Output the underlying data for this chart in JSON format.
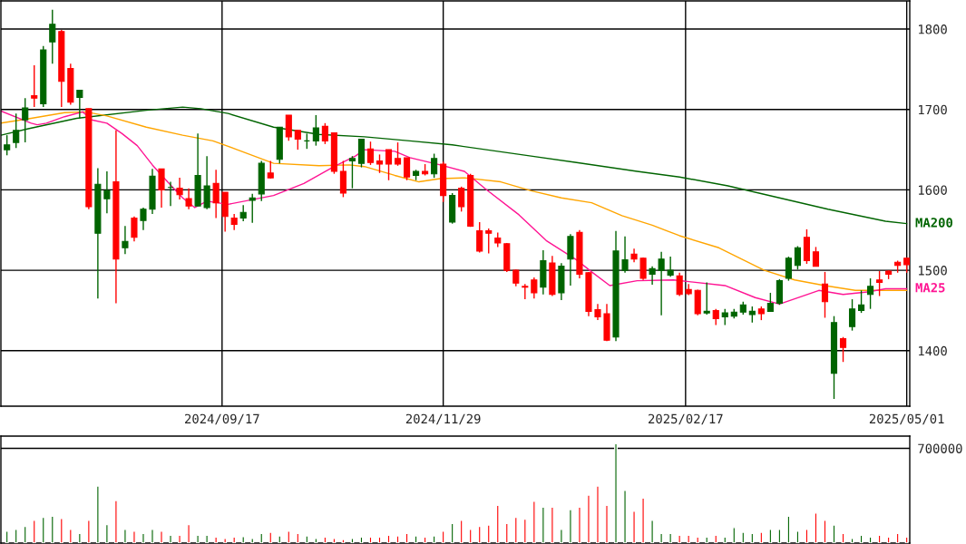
{
  "chart_data": [
    {
      "type": "candlestick",
      "x": [
        "2024-07-08",
        "2024-07-11",
        "2024-07-14",
        "2024-07-17",
        "2024-07-20",
        "2024-07-23",
        "2024-07-26",
        "2024-07-29",
        "2024-08-01",
        "2024-08-04",
        "2024-08-07",
        "2024-08-10",
        "2024-08-13",
        "2024-08-16",
        "2024-08-19",
        "2024-08-22",
        "2024-08-25",
        "2024-08-28",
        "2024-08-31",
        "2024-09-03",
        "2024-09-06",
        "2024-09-09",
        "2024-09-12",
        "2024-09-15",
        "2024-09-18",
        "2024-09-21",
        "2024-09-24",
        "2024-09-27",
        "2024-09-30",
        "2024-10-03",
        "2024-10-06",
        "2024-10-09",
        "2024-10-12",
        "2024-10-15",
        "2024-10-18",
        "2024-10-21",
        "2024-10-24",
        "2024-10-27",
        "2024-10-30",
        "2024-11-02",
        "2024-11-05",
        "2024-11-08",
        "2024-11-11",
        "2024-11-14",
        "2024-11-17",
        "2024-11-20",
        "2024-11-23",
        "2024-11-26",
        "2024-11-29",
        "2024-12-02",
        "2024-12-05",
        "2024-12-08",
        "2024-12-11",
        "2024-12-14",
        "2024-12-17",
        "2024-12-20",
        "2024-12-23",
        "2024-12-26",
        "2024-12-29",
        "2025-01-01",
        "2025-01-04",
        "2025-01-07",
        "2025-01-10",
        "2025-01-13",
        "2025-01-16",
        "2025-01-19",
        "2025-01-22",
        "2025-01-25",
        "2025-01-28",
        "2025-01-31",
        "2025-02-03",
        "2025-02-06",
        "2025-02-09",
        "2025-02-12",
        "2025-02-15",
        "2025-02-18",
        "2025-02-21",
        "2025-02-24",
        "2025-02-27",
        "2025-03-02",
        "2025-03-05",
        "2025-03-08",
        "2025-03-11",
        "2025-03-14",
        "2025-03-17",
        "2025-03-20",
        "2025-03-23",
        "2025-03-26",
        "2025-03-29",
        "2025-04-01",
        "2025-04-04",
        "2025-04-07",
        "2025-04-10",
        "2025-04-13",
        "2025-04-16",
        "2025-04-19",
        "2025-04-22",
        "2025-04-25",
        "2025-04-28",
        "2025-05-01"
      ],
      "ohlc": [
        [
          1650,
          1668,
          1643,
          1656
        ],
        [
          1659,
          1695,
          1652,
          1674
        ],
        [
          1687,
          1714,
          1659,
          1702
        ],
        [
          1717,
          1755,
          1703,
          1714
        ],
        [
          1707,
          1779,
          1703,
          1774
        ],
        [
          1784,
          1824,
          1757,
          1806
        ],
        [
          1797,
          1799,
          1703,
          1735
        ],
        [
          1751,
          1757,
          1706,
          1709
        ],
        [
          1715,
          1724,
          1689,
          1724
        ],
        [
          1701,
          1701,
          1576,
          1579
        ],
        [
          1546,
          1627,
          1465,
          1607
        ],
        [
          1589,
          1623,
          1571,
          1599
        ],
        [
          1610,
          1674,
          1459,
          1514
        ],
        [
          1528,
          1555,
          1520,
          1536
        ],
        [
          1565,
          1567,
          1536,
          1541
        ],
        [
          1562,
          1578,
          1550,
          1576
        ],
        [
          1576,
          1626,
          1570,
          1617
        ],
        [
          1626,
          1626,
          1578,
          1600
        ],
        [
          1603,
          1610,
          1580,
          1603
        ],
        [
          1602,
          1615,
          1588,
          1594
        ],
        [
          1589,
          1602,
          1576,
          1580
        ],
        [
          1580,
          1670,
          1580,
          1618
        ],
        [
          1578,
          1642,
          1576,
          1605
        ],
        [
          1608,
          1625,
          1565,
          1584
        ],
        [
          1597,
          1597,
          1548,
          1567
        ],
        [
          1565,
          1570,
          1550,
          1557
        ],
        [
          1565,
          1581,
          1561,
          1572
        ],
        [
          1587,
          1595,
          1559,
          1590
        ],
        [
          1595,
          1636,
          1586,
          1633
        ],
        [
          1621,
          1636,
          1614,
          1615
        ],
        [
          1638,
          1678,
          1633,
          1678
        ],
        [
          1693,
          1693,
          1661,
          1666
        ],
        [
          1674,
          1674,
          1650,
          1663
        ],
        [
          1661,
          1670,
          1651,
          1661
        ],
        [
          1661,
          1693,
          1655,
          1677
        ],
        [
          1679,
          1683,
          1657,
          1661
        ],
        [
          1671,
          1671,
          1620,
          1623
        ],
        [
          1623,
          1636,
          1591,
          1596
        ],
        [
          1636,
          1642,
          1602,
          1639
        ],
        [
          1633,
          1663,
          1628,
          1663
        ],
        [
          1651,
          1660,
          1631,
          1634
        ],
        [
          1636,
          1644,
          1621,
          1632
        ],
        [
          1650,
          1650,
          1612,
          1632
        ],
        [
          1639,
          1659,
          1630,
          1632
        ],
        [
          1640,
          1640,
          1612,
          1616
        ],
        [
          1618,
          1625,
          1612,
          1623
        ],
        [
          1623,
          1632,
          1618,
          1620
        ],
        [
          1620,
          1645,
          1615,
          1639
        ],
        [
          1632,
          1635,
          1585,
          1593
        ],
        [
          1560,
          1596,
          1558,
          1593
        ],
        [
          1602,
          1604,
          1573,
          1579
        ],
        [
          1618,
          1620,
          1554,
          1555
        ],
        [
          1549,
          1560,
          1522,
          1524
        ],
        [
          1549,
          1552,
          1521,
          1546
        ],
        [
          1540,
          1547,
          1529,
          1534
        ],
        [
          1533,
          1534,
          1498,
          1500
        ],
        [
          1500,
          1501,
          1480,
          1484
        ],
        [
          1480,
          1483,
          1464,
          1479
        ],
        [
          1488,
          1491,
          1465,
          1472
        ],
        [
          1479,
          1525,
          1470,
          1512
        ],
        [
          1509,
          1518,
          1468,
          1470
        ],
        [
          1472,
          1509,
          1463,
          1505
        ],
        [
          1514,
          1545,
          1481,
          1542
        ],
        [
          1547,
          1550,
          1490,
          1495
        ],
        [
          1497,
          1498,
          1443,
          1449
        ],
        [
          1451,
          1458,
          1438,
          1442
        ],
        [
          1446,
          1458,
          1412,
          1413
        ],
        [
          1417,
          1549,
          1412,
          1524
        ],
        [
          1500,
          1542,
          1497,
          1513
        ],
        [
          1520,
          1527,
          1510,
          1514
        ],
        [
          1515,
          1516,
          1488,
          1490
        ],
        [
          1495,
          1505,
          1482,
          1502
        ],
        [
          1500,
          1523,
          1444,
          1514
        ],
        [
          1494,
          1517,
          1492,
          1500
        ],
        [
          1493,
          1497,
          1468,
          1470
        ],
        [
          1476,
          1483,
          1469,
          1471
        ],
        [
          1475,
          1476,
          1444,
          1446
        ],
        [
          1447,
          1485,
          1445,
          1449
        ],
        [
          1450,
          1452,
          1432,
          1440
        ],
        [
          1442,
          1452,
          1432,
          1447
        ],
        [
          1443,
          1452,
          1440,
          1448
        ],
        [
          1448,
          1461,
          1445,
          1457
        ],
        [
          1445,
          1455,
          1435,
          1449
        ],
        [
          1452,
          1455,
          1438,
          1446
        ],
        [
          1449,
          1472,
          1449,
          1459
        ],
        [
          1459,
          1489,
          1457,
          1487
        ],
        [
          1490,
          1517,
          1487,
          1515
        ],
        [
          1506,
          1530,
          1501,
          1528
        ],
        [
          1541,
          1551,
          1508,
          1512
        ],
        [
          1523,
          1529,
          1505,
          1505
        ],
        [
          1483,
          1498,
          1441,
          1461
        ],
        [
          1372,
          1443,
          1340,
          1435
        ],
        [
          1415,
          1417,
          1386,
          1404
        ],
        [
          1430,
          1464,
          1425,
          1452
        ],
        [
          1450,
          1475,
          1447,
          1457
        ],
        [
          1470,
          1490,
          1452,
          1480
        ],
        [
          1488,
          1499,
          1468,
          1485
        ],
        [
          1499,
          1500,
          1489,
          1495
        ],
        [
          1510,
          1512,
          1497,
          1506
        ],
        [
          1515,
          1516,
          1497,
          1507
        ]
      ],
      "colors": [
        "#006400",
        "#006400",
        "#006400",
        "#ff0000",
        "#006400",
        "#006400",
        "#ff0000",
        "#ff0000",
        "#006400",
        "#ff0000",
        "#006400",
        "#006400",
        "#ff0000",
        "#006400",
        "#ff0000",
        "#006400",
        "#006400",
        "#ff0000",
        "#006400",
        "#ff0000",
        "#ff0000",
        "#006400",
        "#006400",
        "#ff0000",
        "#ff0000",
        "#ff0000",
        "#006400",
        "#006400",
        "#006400",
        "#ff0000",
        "#006400",
        "#ff0000",
        "#ff0000",
        "#006400",
        "#006400",
        "#ff0000",
        "#ff0000",
        "#ff0000",
        "#006400",
        "#006400",
        "#ff0000",
        "#ff0000",
        "#ff0000",
        "#ff0000",
        "#ff0000",
        "#006400",
        "#ff0000",
        "#006400",
        "#ff0000",
        "#006400",
        "#ff0000",
        "#ff0000",
        "#ff0000",
        "#ff0000",
        "#ff0000",
        "#ff0000",
        "#ff0000",
        "#ff0000",
        "#ff0000",
        "#006400",
        "#ff0000",
        "#006400",
        "#006400",
        "#ff0000",
        "#ff0000",
        "#ff0000",
        "#ff0000",
        "#006400",
        "#006400",
        "#ff0000",
        "#ff0000",
        "#006400",
        "#006400",
        "#006400",
        "#ff0000",
        "#ff0000",
        "#ff0000",
        "#006400",
        "#ff0000",
        "#006400",
        "#006400",
        "#006400",
        "#006400",
        "#ff0000",
        "#006400",
        "#006400",
        "#006400",
        "#006400",
        "#ff0000",
        "#ff0000",
        "#ff0000",
        "#006400",
        "#ff0000",
        "#006400",
        "#006400",
        "#006400",
        "#ff0000",
        "#ff0000",
        "#ff0000",
        "#ff0000"
      ],
      "series": [
        {
          "type": "line",
          "name": "MA200",
          "color": "#006400",
          "x": [
            "2024-07-06",
            "2024-07-15",
            "2024-07-31",
            "2024-08-23",
            "2024-09-04",
            "2024-09-10",
            "2024-09-19",
            "2024-10-04",
            "2024-10-19",
            "2024-11-03",
            "2024-11-18",
            "2024-12-02",
            "2024-12-28",
            "2025-01-12",
            "2025-02-01",
            "2025-02-15",
            "2025-03-03",
            "2025-04-05",
            "2025-04-24",
            "2025-05-01"
          ],
          "values": [
            1668,
            1676,
            1689,
            1699,
            1703,
            1701,
            1695,
            1678,
            1669,
            1666,
            1661,
            1656,
            1642,
            1634,
            1623,
            1616,
            1605,
            1576,
            1561,
            1558
          ]
        },
        {
          "type": "line",
          "color": "#ffa500",
          "x": [
            "2024-07-06",
            "2024-07-16",
            "2024-07-27",
            "2024-08-03",
            "2024-08-10",
            "2024-08-23",
            "2024-09-04",
            "2024-09-14",
            "2024-09-22",
            "2024-10-04",
            "2024-10-19",
            "2024-10-29",
            "2024-11-03",
            "2024-11-13",
            "2024-11-21",
            "2024-11-28",
            "2024-12-06",
            "2024-12-18",
            "2024-12-28",
            "2025-01-07",
            "2025-01-17",
            "2025-01-27",
            "2025-02-06",
            "2025-02-15",
            "2025-02-28",
            "2025-03-15",
            "2025-03-25",
            "2025-04-04",
            "2025-04-14",
            "2025-04-24",
            "2025-05-01"
          ],
          "values": [
            1683,
            1689,
            1696,
            1697,
            1692,
            1678,
            1668,
            1661,
            1650,
            1633,
            1630,
            1631,
            1629,
            1618,
            1610,
            1614,
            1615,
            1610,
            1599,
            1590,
            1584,
            1568,
            1556,
            1543,
            1528,
            1500,
            1488,
            1481,
            1475,
            1475,
            1475
          ]
        },
        {
          "type": "line",
          "name": "MA25",
          "color": "#ff1493",
          "x": [
            "2024-07-06",
            "2024-07-16",
            "2024-07-18",
            "2024-07-21",
            "2024-07-27",
            "2024-08-02",
            "2024-08-05",
            "2024-08-10",
            "2024-08-15",
            "2024-08-20",
            "2024-08-25",
            "2024-08-30",
            "2024-09-04",
            "2024-09-08",
            "2024-09-12",
            "2024-09-19",
            "2024-10-04",
            "2024-10-14",
            "2024-10-24",
            "2024-10-31",
            "2024-11-03",
            "2024-11-13",
            "2024-11-18",
            "2024-11-28",
            "2024-12-06",
            "2024-12-13",
            "2024-12-24",
            "2025-01-02",
            "2025-01-12",
            "2025-01-17",
            "2025-01-23",
            "2025-02-01",
            "2025-02-13",
            "2025-03-02",
            "2025-03-12",
            "2025-03-20",
            "2025-04-02",
            "2025-04-10",
            "2025-04-18",
            "2025-04-24",
            "2025-05-01"
          ],
          "values": [
            1698,
            1683,
            1681,
            1683,
            1691,
            1697,
            1687,
            1683,
            1670,
            1655,
            1631,
            1610,
            1590,
            1578,
            1586,
            1582,
            1593,
            1608,
            1629,
            1642,
            1650,
            1648,
            1640,
            1631,
            1623,
            1601,
            1569,
            1537,
            1513,
            1498,
            1481,
            1487,
            1488,
            1481,
            1466,
            1458,
            1475,
            1470,
            1473,
            1477,
            1477
          ]
        }
      ],
      "xlim": [
        "2024-07-06",
        "2025-05-02"
      ],
      "ylim": [
        1331,
        1835
      ],
      "xticks": [
        {
          "value": "2024-09-17",
          "label": "2024/09/17"
        },
        {
          "value": "2024-11-29",
          "label": "2024/11/29"
        },
        {
          "value": "2025-02-17",
          "label": "2025/02/17"
        },
        {
          "value": "2025-05-01",
          "label": "2025/05/01"
        }
      ],
      "yticks": [
        1400,
        1500,
        1600,
        1700,
        1800
      ],
      "grid": true
    },
    {
      "type": "bar",
      "x": [
        "2024-07-08",
        "2024-07-11",
        "2024-07-14",
        "2024-07-17",
        "2024-07-20",
        "2024-07-23",
        "2024-07-26",
        "2024-07-29",
        "2024-08-01",
        "2024-08-04",
        "2024-08-07",
        "2024-08-10",
        "2024-08-13",
        "2024-08-16",
        "2024-08-19",
        "2024-08-22",
        "2024-08-25",
        "2024-08-28",
        "2024-08-31",
        "2024-09-03",
        "2024-09-06",
        "2024-09-09",
        "2024-09-12",
        "2024-09-15",
        "2024-09-18",
        "2024-09-21",
        "2024-09-24",
        "2024-09-27",
        "2024-09-30",
        "2024-10-03",
        "2024-10-06",
        "2024-10-09",
        "2024-10-12",
        "2024-10-15",
        "2024-10-18",
        "2024-10-21",
        "2024-10-24",
        "2024-10-27",
        "2024-10-30",
        "2024-11-02",
        "2024-11-05",
        "2024-11-08",
        "2024-11-11",
        "2024-11-14",
        "2024-11-17",
        "2024-11-20",
        "2024-11-23",
        "2024-11-26",
        "2024-11-29",
        "2024-12-02",
        "2024-12-05",
        "2024-12-08",
        "2024-12-11",
        "2024-12-14",
        "2024-12-17",
        "2024-12-20",
        "2024-12-23",
        "2024-12-26",
        "2024-12-29",
        "2025-01-01",
        "2025-01-04",
        "2025-01-07",
        "2025-01-10",
        "2025-01-13",
        "2025-01-16",
        "2025-01-19",
        "2025-01-22",
        "2025-01-25",
        "2025-01-28",
        "2025-01-31",
        "2025-02-03",
        "2025-02-06",
        "2025-02-09",
        "2025-02-12",
        "2025-02-15",
        "2025-02-18",
        "2025-02-21",
        "2025-02-24",
        "2025-02-27",
        "2025-03-02",
        "2025-03-05",
        "2025-03-08",
        "2025-03-11",
        "2025-03-14",
        "2025-03-17",
        "2025-03-20",
        "2025-03-23",
        "2025-03-26",
        "2025-03-29",
        "2025-04-01",
        "2025-04-04",
        "2025-04-07",
        "2025-04-10",
        "2025-04-13",
        "2025-04-16",
        "2025-04-19",
        "2025-04-22",
        "2025-04-25",
        "2025-04-28",
        "2025-05-01"
      ],
      "values": [
        89000,
        102000,
        124000,
        168000,
        190000,
        199000,
        182000,
        102000,
        71000,
        168000,
        421000,
        137000,
        315000,
        102000,
        89000,
        71000,
        102000,
        89000,
        58000,
        58000,
        137000,
        58000,
        58000,
        44000,
        35000,
        44000,
        49000,
        35000,
        71000,
        80000,
        53000,
        89000,
        71000,
        53000,
        35000,
        44000,
        35000,
        27000,
        35000,
        44000,
        44000,
        44000,
        58000,
        53000,
        71000,
        53000,
        44000,
        53000,
        89000,
        146000,
        168000,
        102000,
        124000,
        133000,
        279000,
        146000,
        190000,
        177000,
        310000,
        266000,
        266000,
        102000,
        248000,
        266000,
        354000,
        421000,
        279000,
        735000,
        390000,
        235000,
        332000,
        168000,
        71000,
        71000,
        58000,
        58000,
        44000,
        44000,
        58000,
        44000,
        115000,
        80000,
        71000,
        80000,
        102000,
        102000,
        199000,
        89000,
        102000,
        222000,
        168000,
        133000,
        71000,
        35000,
        58000,
        44000,
        58000,
        44000,
        71000,
        44000
      ],
      "colors": [
        "#006400",
        "#006400",
        "#006400",
        "#ff0000",
        "#006400",
        "#006400",
        "#ff0000",
        "#ff0000",
        "#006400",
        "#ff0000",
        "#006400",
        "#006400",
        "#ff0000",
        "#006400",
        "#ff0000",
        "#006400",
        "#006400",
        "#ff0000",
        "#006400",
        "#ff0000",
        "#ff0000",
        "#006400",
        "#006400",
        "#ff0000",
        "#ff0000",
        "#ff0000",
        "#006400",
        "#006400",
        "#006400",
        "#ff0000",
        "#006400",
        "#ff0000",
        "#ff0000",
        "#006400",
        "#006400",
        "#ff0000",
        "#ff0000",
        "#ff0000",
        "#006400",
        "#006400",
        "#ff0000",
        "#ff0000",
        "#ff0000",
        "#ff0000",
        "#ff0000",
        "#006400",
        "#ff0000",
        "#006400",
        "#ff0000",
        "#006400",
        "#ff0000",
        "#ff0000",
        "#ff0000",
        "#ff0000",
        "#ff0000",
        "#ff0000",
        "#ff0000",
        "#ff0000",
        "#ff0000",
        "#006400",
        "#ff0000",
        "#006400",
        "#006400",
        "#ff0000",
        "#ff0000",
        "#ff0000",
        "#ff0000",
        "#006400",
        "#006400",
        "#ff0000",
        "#ff0000",
        "#006400",
        "#006400",
        "#006400",
        "#ff0000",
        "#ff0000",
        "#ff0000",
        "#006400",
        "#ff0000",
        "#006400",
        "#006400",
        "#006400",
        "#006400",
        "#ff0000",
        "#006400",
        "#006400",
        "#006400",
        "#006400",
        "#ff0000",
        "#ff0000",
        "#ff0000",
        "#006400",
        "#ff0000",
        "#006400",
        "#006400",
        "#006400",
        "#ff0000",
        "#ff0000",
        "#ff0000",
        "#ff0000"
      ],
      "xlim": [
        "2024-07-06",
        "2025-05-02"
      ],
      "ylim": [
        0,
        790000
      ],
      "yticks": [
        700000
      ],
      "grid": "y",
      "tick_labels": "y"
    }
  ]
}
